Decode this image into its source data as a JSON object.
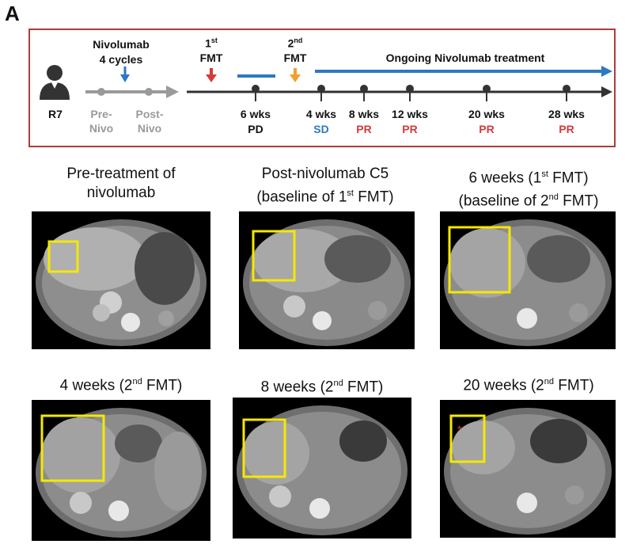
{
  "panel_label": "A",
  "timeline": {
    "patient_id": "R7",
    "nivo_title": "Nivolumab",
    "nivo_cycles": "4 cycles",
    "pre_nivo": [
      "Pre-",
      "Nivo"
    ],
    "post_nivo": [
      "Post-",
      "Nivo"
    ],
    "fmt1": "FMT",
    "fmt1_sup": "st",
    "fmt1_num": "1",
    "fmt2": "FMT",
    "fmt2_sup": "nd",
    "fmt2_num": "2",
    "ongoing": "Ongoing Nivolumab treatment",
    "timepoints": [
      {
        "label": "6 wks",
        "response": "PD",
        "color": "#111111"
      },
      {
        "label": "4 wks",
        "response": "SD",
        "color": "#2e78c2"
      },
      {
        "label": "8 wks",
        "response": "PR",
        "color": "#d63a3a"
      },
      {
        "label": "12 wks",
        "response": "PR",
        "color": "#d63a3a"
      },
      {
        "label": "20 wks",
        "response": "PR",
        "color": "#d63a3a"
      },
      {
        "label": "28 wks",
        "response": "PR",
        "color": "#d63a3a"
      }
    ],
    "colors": {
      "border": "#b23a3a",
      "blue": "#2e78c2",
      "red": "#d63a3a",
      "orange": "#f0a030",
      "gray": "#9a9a9a"
    }
  },
  "scans": [
    {
      "caption_line1": "Pre-treatment of",
      "caption_line2": "nivolumab"
    },
    {
      "caption_line1": "Post-nivolumab C5",
      "caption_line2_pre": "(baseline of 1",
      "caption_line2_sup": "st",
      "caption_line2_post": " FMT)"
    },
    {
      "caption_line1_pre": "6 weeks (1",
      "caption_line1_sup": "st",
      "caption_line1_post": " FMT)",
      "caption_line2_pre": "(baseline of 2",
      "caption_line2_sup": "nd",
      "caption_line2_post": " FMT)"
    },
    {
      "caption_pre": "4 weeks (2",
      "caption_sup": "nd",
      "caption_post": " FMT)"
    },
    {
      "caption_pre": "8 weeks (2",
      "caption_sup": "nd",
      "caption_post": " FMT)"
    },
    {
      "caption_pre": "20 weeks (2",
      "caption_sup": "nd",
      "caption_post": " FMT)"
    }
  ]
}
